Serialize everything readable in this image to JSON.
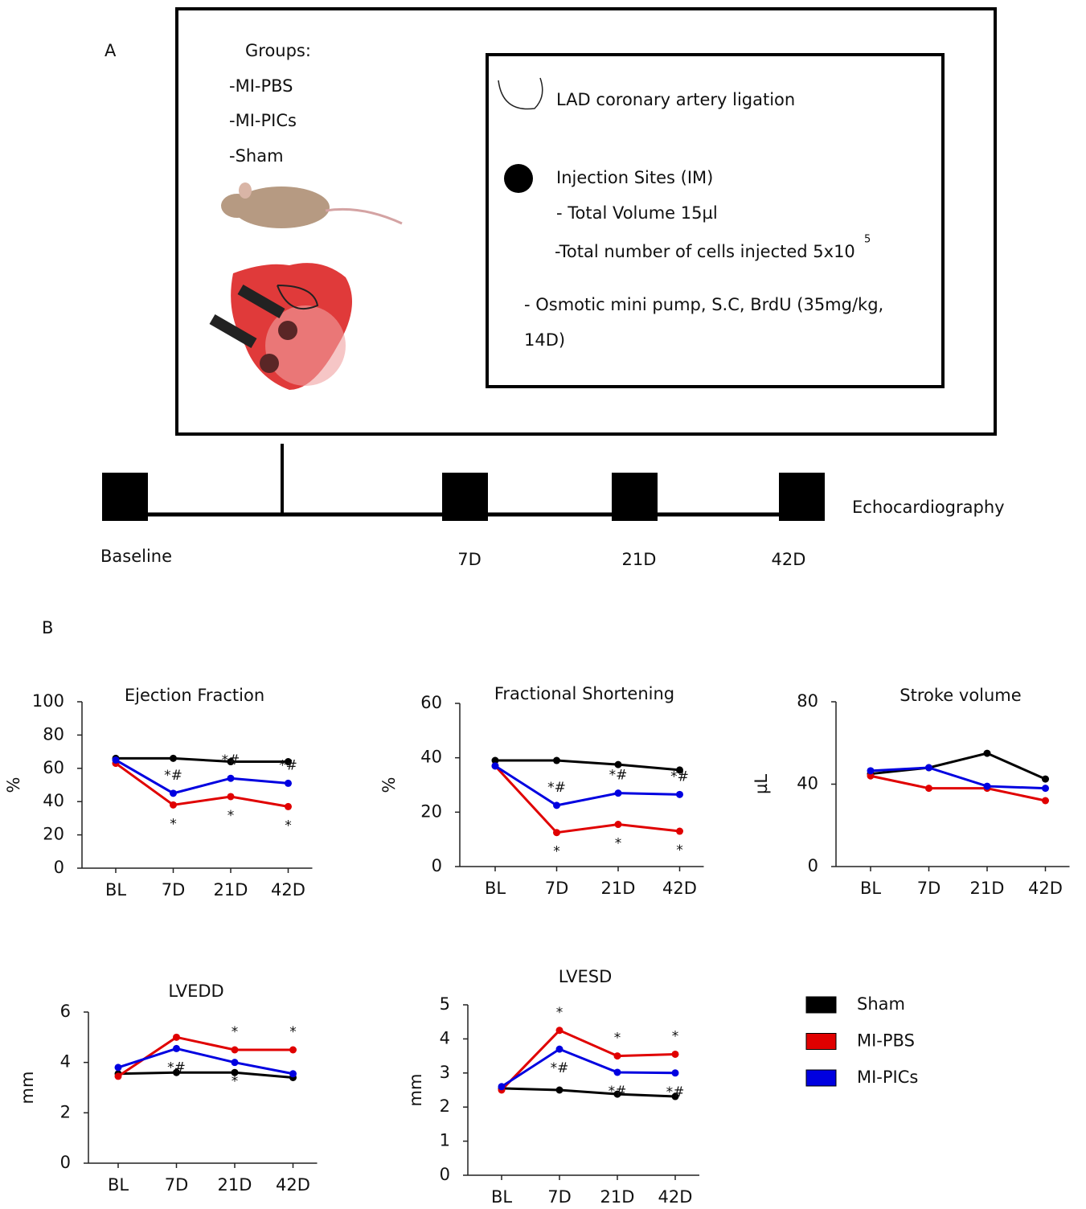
{
  "panel_a": {
    "label": "A",
    "groups_title": "Groups:",
    "groups": [
      "-MI-PBS",
      "-MI-PICs",
      "-Sham"
    ],
    "legend_box": {
      "ligation": "LAD coronary artery ligation",
      "injection_sites": "Injection Sites (IM)",
      "total_volume": "- Total Volume 15µl",
      "cells": "-Total number of cells injected 5x10",
      "cells_exponent": "5",
      "pump_line1": "- Osmotic mini pump, S.C, BrdU (35mg/kg,",
      "pump_line2": "14D)"
    },
    "timeline": {
      "labels": [
        "Baseline",
        "7D",
        "21D",
        "42D"
      ],
      "method": "Echocardiography"
    }
  },
  "panel_b": {
    "label": "B"
  },
  "chart_data": [
    {
      "type": "line",
      "title": "Ejection Fraction",
      "y_label": "%",
      "categories": [
        "BL",
        "7D",
        "21D",
        "42D"
      ],
      "ylim": [
        0,
        100
      ],
      "yticks": [
        0,
        20,
        40,
        60,
        80,
        100
      ],
      "series": [
        {
          "name": "Sham",
          "color": "#000000",
          "values": [
            66,
            66,
            64,
            64
          ]
        },
        {
          "name": "MI-PBS",
          "color": "#e00000",
          "values": [
            63,
            38,
            43,
            37
          ],
          "annotations": [
            null,
            "*",
            "*",
            "*"
          ]
        },
        {
          "name": "MI-PICs",
          "color": "#0000e0",
          "values": [
            65,
            45,
            54,
            51
          ],
          "annotations": [
            null,
            "*#",
            "*#",
            "*#"
          ]
        }
      ]
    },
    {
      "type": "line",
      "title": "Fractional Shortening",
      "y_label": "%",
      "categories": [
        "BL",
        "7D",
        "21D",
        "42D"
      ],
      "ylim": [
        0,
        60
      ],
      "yticks": [
        0,
        20,
        40,
        60
      ],
      "series": [
        {
          "name": "Sham",
          "color": "#000000",
          "values": [
            39,
            39,
            37.5,
            35.5
          ]
        },
        {
          "name": "MI-PBS",
          "color": "#e00000",
          "values": [
            37,
            12.5,
            15.5,
            13
          ],
          "annotations": [
            null,
            "*",
            "*",
            "*"
          ]
        },
        {
          "name": "MI-PICs",
          "color": "#0000e0",
          "values": [
            37,
            22.5,
            27,
            26.5
          ],
          "annotations": [
            null,
            "*#",
            "*#",
            "*#"
          ]
        }
      ]
    },
    {
      "type": "line",
      "title": "Stroke volume",
      "y_label": "µL",
      "categories": [
        "BL",
        "7D",
        "21D",
        "42D"
      ],
      "ylim": [
        0,
        80
      ],
      "yticks": [
        0,
        40,
        80
      ],
      "series": [
        {
          "name": "Sham",
          "color": "#000000",
          "values": [
            45,
            48,
            55,
            42.5
          ]
        },
        {
          "name": "MI-PBS",
          "color": "#e00000",
          "values": [
            44,
            38,
            38,
            32
          ]
        },
        {
          "name": "MI-PICs",
          "color": "#0000e0",
          "values": [
            46.5,
            48,
            39,
            38
          ]
        }
      ]
    },
    {
      "type": "line",
      "title": "LVEDD",
      "y_label": "mm",
      "categories": [
        "BL",
        "7D",
        "21D",
        "42D"
      ],
      "ylim": [
        0,
        6
      ],
      "yticks": [
        0,
        2,
        4,
        6
      ],
      "series": [
        {
          "name": "Sham",
          "color": "#000000",
          "values": [
            3.55,
            3.6,
            3.6,
            3.4
          ]
        },
        {
          "name": "MI-PBS",
          "color": "#e00000",
          "values": [
            3.45,
            5.0,
            4.5,
            4.5
          ],
          "annotations": [
            null,
            null,
            "*",
            "*"
          ]
        },
        {
          "name": "MI-PICs",
          "color": "#0000e0",
          "values": [
            3.8,
            4.55,
            4.0,
            3.55
          ],
          "annotations": [
            null,
            "*#",
            "*",
            null
          ]
        }
      ]
    },
    {
      "type": "line",
      "title": "LVESD",
      "y_label": "mm",
      "categories": [
        "BL",
        "7D",
        "21D",
        "42D"
      ],
      "ylim": [
        0,
        5
      ],
      "yticks": [
        0,
        1,
        2,
        3,
        4,
        5
      ],
      "series": [
        {
          "name": "Sham",
          "color": "#000000",
          "values": [
            2.55,
            2.5,
            2.38,
            2.31
          ]
        },
        {
          "name": "MI-PBS",
          "color": "#e00000",
          "values": [
            2.5,
            4.25,
            3.5,
            3.55
          ],
          "annotations": [
            null,
            "*",
            "*",
            "*"
          ]
        },
        {
          "name": "MI-PICs",
          "color": "#0000e0",
          "values": [
            2.6,
            3.7,
            3.02,
            3.0
          ],
          "annotations": [
            null,
            "*#",
            "*#",
            "*#"
          ]
        }
      ]
    }
  ]
}
